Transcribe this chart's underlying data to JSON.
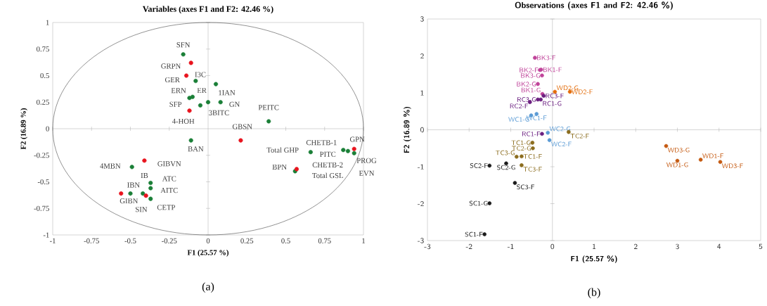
{
  "chart_data": [
    {
      "type": "scatter",
      "title": "Variables (axes F1 and F2: 42.46 %)",
      "xlabel": "F1 (25.57 %)",
      "ylabel": "F2 (16.89 %)",
      "xlim": [
        -1,
        1
      ],
      "ylim": [
        -1,
        1
      ],
      "xticks": [
        -1,
        -0.75,
        -0.5,
        -0.25,
        0,
        0.25,
        0.5,
        0.75,
        1
      ],
      "yticks": [
        -1,
        -0.75,
        -0.5,
        -0.25,
        0,
        0.25,
        0.5,
        0.75,
        1
      ],
      "marker": "circle",
      "series": [
        {
          "color": "#1a7f37",
          "x": [
            -0.16,
            -0.08,
            0.05,
            -0.12,
            -0.1,
            -0.05,
            0.0,
            0.08,
            0.39,
            -0.11,
            0.66,
            0.87,
            0.9,
            0.94,
            0.56,
            -0.49,
            -0.37,
            -0.37,
            -0.5,
            -0.42,
            -0.37
          ],
          "values": [
            0.7,
            0.45,
            0.42,
            0.29,
            0.3,
            0.22,
            0.25,
            0.25,
            0.07,
            -0.11,
            -0.22,
            -0.2,
            -0.21,
            -0.23,
            -0.4,
            -0.36,
            -0.51,
            -0.56,
            -0.61,
            -0.61,
            -0.66
          ]
        },
        {
          "color": "#e8141e",
          "x": [
            -0.11,
            -0.14,
            -0.12,
            0.21,
            0.94,
            0.57,
            -0.41,
            -0.56,
            -0.4
          ],
          "values": [
            0.62,
            0.5,
            0.17,
            -0.11,
            -0.19,
            -0.38,
            -0.3,
            -0.61,
            -0.63
          ]
        }
      ],
      "annotations": [
        {
          "text": "SFN",
          "x": -0.16,
          "y": 0.7
        },
        {
          "text": "GRPN",
          "x": -0.11,
          "y": 0.62
        },
        {
          "text": "I3C",
          "x": -0.08,
          "y": 0.45
        },
        {
          "text": "GER",
          "x": -0.14,
          "y": 0.5
        },
        {
          "text": "ERN",
          "x": -0.12,
          "y": 0.29
        },
        {
          "text": "ER",
          "x": -0.1,
          "y": 0.3
        },
        {
          "text": "1IAN",
          "x": 0.05,
          "y": 0.42
        },
        {
          "text": "SFP",
          "x": -0.12,
          "y": 0.17
        },
        {
          "text": "GN",
          "x": 0.08,
          "y": 0.25
        },
        {
          "text": "3BITC",
          "x": 0.0,
          "y": 0.25
        },
        {
          "text": "4-HOH",
          "x": -0.12,
          "y": 0.17
        },
        {
          "text": "PEITC",
          "x": 0.39,
          "y": 0.07
        },
        {
          "text": "GBSN",
          "x": 0.21,
          "y": -0.11
        },
        {
          "text": "BAN",
          "x": -0.11,
          "y": -0.11
        },
        {
          "text": "CHETB-1",
          "x": 0.87,
          "y": -0.2
        },
        {
          "text": "GPN",
          "x": 0.94,
          "y": -0.19
        },
        {
          "text": "Total GHP",
          "x": 0.66,
          "y": -0.22
        },
        {
          "text": "PITC",
          "x": 0.9,
          "y": -0.21
        },
        {
          "text": "CHETB-2",
          "x": 0.87,
          "y": -0.2
        },
        {
          "text": "PROG",
          "x": 0.94,
          "y": -0.23
        },
        {
          "text": "BPN",
          "x": 0.56,
          "y": -0.4
        },
        {
          "text": "Total GSL",
          "x": 0.57,
          "y": -0.38
        },
        {
          "text": "EVN",
          "x": 0.94,
          "y": -0.23
        },
        {
          "text": "4MBN",
          "x": -0.49,
          "y": -0.36
        },
        {
          "text": "GIBVN",
          "x": -0.41,
          "y": -0.3
        },
        {
          "text": "IB",
          "x": -0.37,
          "y": -0.51
        },
        {
          "text": "ATC",
          "x": -0.37,
          "y": -0.51
        },
        {
          "text": "IBN",
          "x": -0.5,
          "y": -0.61
        },
        {
          "text": "AITC",
          "x": -0.37,
          "y": -0.56
        },
        {
          "text": "GIBN",
          "x": -0.56,
          "y": -0.61
        },
        {
          "text": "CETP",
          "x": -0.37,
          "y": -0.66
        },
        {
          "text": "SIN",
          "x": -0.4,
          "y": -0.63
        },
        "(a)"
      ]
    },
    {
      "type": "scatter",
      "title": "Observations (axes F1 and F2: 42.46 %)",
      "xlabel": "F1 (25.57 %)",
      "ylabel": "F2 (16.89 %)",
      "xlim": [
        -3,
        5
      ],
      "ylim": [
        -3,
        3
      ],
      "xticks": [
        -3,
        -2,
        -1,
        0,
        1,
        2,
        3,
        4,
        5
      ],
      "yticks": [
        -3,
        -2,
        -1,
        0,
        1,
        2,
        3
      ],
      "marker": "circle",
      "series": [
        {
          "name": "BK3-F",
          "color": "#c0449a",
          "x": [
            -0.42
          ],
          "values": [
            1.95
          ]
        },
        {
          "name": "BK2-F",
          "color": "#c0449a",
          "x": [
            -0.3
          ],
          "values": [
            1.62
          ]
        },
        {
          "name": "BK1-F",
          "color": "#c0449a",
          "x": [
            -0.27
          ],
          "values": [
            1.63
          ]
        },
        {
          "name": "BK3-G",
          "color": "#c0449a",
          "x": [
            -0.25
          ],
          "values": [
            1.47
          ]
        },
        {
          "name": "BK2-G",
          "color": "#c0449a",
          "x": [
            -0.35
          ],
          "values": [
            1.24
          ]
        },
        {
          "name": "BK1-G",
          "color": "#c0449a",
          "x": [
            -0.24
          ],
          "values": [
            0.97
          ]
        },
        {
          "name": "RC3-G",
          "color": "#6b1f80",
          "x": [
            -0.35
          ],
          "values": [
            0.82
          ]
        },
        {
          "name": "RC3-F",
          "color": "#6b1f80",
          "x": [
            -0.21
          ],
          "values": [
            0.92
          ]
        },
        {
          "name": "RC2-F",
          "color": "#6b1f80",
          "x": [
            -0.54
          ],
          "values": [
            0.75
          ]
        },
        {
          "name": "RC1-G",
          "color": "#6b1f80",
          "x": [
            -0.28
          ],
          "values": [
            0.82
          ]
        },
        {
          "name": "RC1-F",
          "color": "#6b1f80",
          "x": [
            -0.25
          ],
          "values": [
            -0.11
          ]
        },
        {
          "name": "WC1-G",
          "color": "#5b9bd5",
          "x": [
            -0.51
          ],
          "values": [
            0.39
          ]
        },
        {
          "name": "WC1-F",
          "color": "#5b9bd5",
          "x": [
            -0.38
          ],
          "values": [
            0.43
          ]
        },
        {
          "name": "WC2-G",
          "color": "#5b9bd5",
          "x": [
            -0.11
          ],
          "values": [
            -0.08
          ]
        },
        {
          "name": "WC2-F",
          "color": "#5b9bd5",
          "x": [
            -0.07
          ],
          "values": [
            -0.28
          ]
        },
        {
          "name": "WD2-G",
          "color": "#e36c0a",
          "x": [
            0.06
          ],
          "values": [
            1.03
          ]
        },
        {
          "name": "WD2-F",
          "color": "#e36c0a",
          "x": [
            0.42
          ],
          "values": [
            1.03
          ]
        },
        {
          "name": "WD3-G",
          "color": "#c55a11",
          "x": [
            2.73
          ],
          "values": [
            -0.44
          ]
        },
        {
          "name": "WD1-G",
          "color": "#c55a11",
          "x": [
            3.0
          ],
          "values": [
            -0.84
          ]
        },
        {
          "name": "WD1-F",
          "color": "#c55a11",
          "x": [
            3.56
          ],
          "values": [
            -0.81
          ]
        },
        {
          "name": "WD3-F",
          "color": "#c55a11",
          "x": [
            4.03
          ],
          "values": [
            -0.87
          ]
        },
        {
          "name": "TC2-F",
          "color": "#8c6d1f",
          "x": [
            0.39
          ],
          "values": [
            -0.06
          ]
        },
        {
          "name": "TC1-G",
          "color": "#8c6d1f",
          "x": [
            -0.48
          ],
          "values": [
            -0.35
          ]
        },
        {
          "name": "TC2-G",
          "color": "#8c6d1f",
          "x": [
            -0.47
          ],
          "values": [
            -0.5
          ]
        },
        {
          "name": "TC3-G",
          "color": "#8c6d1f",
          "x": [
            -0.86
          ],
          "values": [
            -0.73
          ]
        },
        {
          "name": "TC1-F",
          "color": "#8c6d1f",
          "x": [
            -0.74
          ],
          "values": [
            -0.72
          ]
        },
        {
          "name": "TC3-F",
          "color": "#8c6d1f",
          "x": [
            -0.74
          ],
          "values": [
            -0.96
          ]
        },
        {
          "name": "SC2-F",
          "color": "#1a1a1a",
          "x": [
            -1.51
          ],
          "values": [
            -0.97
          ]
        },
        {
          "name": "SC2-G",
          "color": "#1a1a1a",
          "x": [
            -1.11
          ],
          "values": [
            -0.91
          ]
        },
        {
          "name": "SC3-F",
          "color": "#1a1a1a",
          "x": [
            -0.9
          ],
          "values": [
            -1.44
          ]
        },
        {
          "name": "SC1-G",
          "color": "#1a1a1a",
          "x": [
            -1.51
          ],
          "values": [
            -1.99
          ]
        },
        {
          "name": "SC1-F",
          "color": "#1a1a1a",
          "x": [
            -1.63
          ],
          "values": [
            -2.83
          ]
        }
      ],
      "annotations": [
        "(b)"
      ]
    }
  ]
}
